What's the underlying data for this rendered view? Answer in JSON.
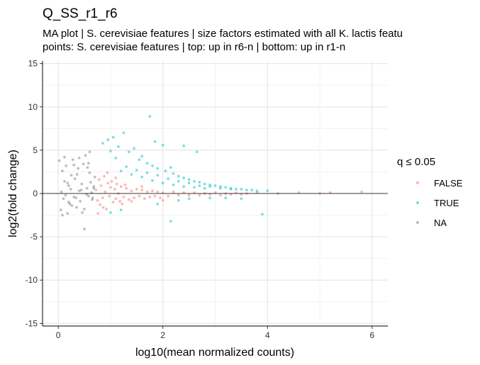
{
  "chart_data": {
    "type": "scatter",
    "title": "Q_SS_r1_r6",
    "subtitle_lines": [
      "MA plot | S. cerevisiae features | size factors estimated with all K. lactis featu",
      "points: S. cerevisiae features | top: up in r6-n | bottom: up in r1-n"
    ],
    "xlabel": "log10(mean normalized counts)",
    "ylabel": "log2(fold change)",
    "xlim": [
      -0.3,
      6.3
    ],
    "ylim": [
      -15.3,
      15.3
    ],
    "x_ticks": [
      0,
      2,
      4,
      6
    ],
    "x_tick_labels": [
      "0",
      "2",
      "4",
      "6"
    ],
    "y_ticks": [
      -15,
      -10,
      -5,
      0,
      5,
      10,
      15
    ],
    "y_tick_labels": [
      "-15",
      "-10",
      "-5",
      "0",
      "5",
      "10",
      "15"
    ],
    "grid": true,
    "reference_line_y": 0,
    "legend": {
      "title": "q ≤ 0.05",
      "placement": "right",
      "entries": [
        {
          "label": "FALSE",
          "color": "#F8766D"
        },
        {
          "label": "TRUE",
          "color": "#00BFC4"
        },
        {
          "label": "NA",
          "color": "#7F7F7F"
        }
      ]
    },
    "series": [
      {
        "name": "NA",
        "color": "#7F7F7F",
        "points": [
          [
            0.02,
            3.8
          ],
          [
            0.05,
            -1.9
          ],
          [
            0.08,
            2.6
          ],
          [
            0.1,
            -0.6
          ],
          [
            0.12,
            1.4
          ],
          [
            0.15,
            3.2
          ],
          [
            0.18,
            -2.3
          ],
          [
            0.2,
            0.9
          ],
          [
            0.22,
            -1.2
          ],
          [
            0.25,
            2.1
          ],
          [
            0.28,
            3.9
          ],
          [
            0.3,
            -0.4
          ],
          [
            0.32,
            1.7
          ],
          [
            0.35,
            -1.6
          ],
          [
            0.38,
            2.9
          ],
          [
            0.4,
            0.3
          ],
          [
            0.42,
            -0.9
          ],
          [
            0.45,
            1.1
          ],
          [
            0.48,
            3.4
          ],
          [
            0.5,
            -1.8
          ],
          [
            0.52,
            4.4
          ],
          [
            0.55,
            0.6
          ],
          [
            0.58,
            -0.3
          ],
          [
            0.6,
            2.4
          ],
          [
            0.62,
            1.3
          ],
          [
            0.65,
            -0.7
          ],
          [
            0.68,
            0.8
          ],
          [
            0.7,
            1.9
          ],
          [
            0.06,
            0.2
          ],
          [
            0.14,
            -0.2
          ],
          [
            0.24,
            0.5
          ],
          [
            0.34,
            -0.5
          ],
          [
            0.44,
            0.4
          ],
          [
            0.54,
            -0.1
          ],
          [
            0.64,
            0.1
          ],
          [
            0.18,
            1.2
          ],
          [
            0.36,
            2.2
          ],
          [
            0.56,
            3.0
          ],
          [
            0.26,
            -1.4
          ],
          [
            0.46,
            -2.2
          ],
          [
            0.5,
            -4.1
          ],
          [
            0.66,
            -0.5
          ],
          [
            0.12,
            4.2
          ],
          [
            0.4,
            4.1
          ],
          [
            0.58,
            3.5
          ],
          [
            0.3,
            3.3
          ],
          [
            0.6,
            4.8
          ],
          [
            0.08,
            -2.5
          ],
          [
            0.2,
            -1.0
          ],
          [
            0.68,
            0.6
          ]
        ]
      },
      {
        "name": "FALSE",
        "color": "#F8766D",
        "points": [
          [
            0.72,
            0.4
          ],
          [
            0.75,
            -0.8
          ],
          [
            0.78,
            1.6
          ],
          [
            0.8,
            -1.3
          ],
          [
            0.82,
            0.9
          ],
          [
            0.85,
            -0.5
          ],
          [
            0.88,
            2.0
          ],
          [
            0.9,
            0.2
          ],
          [
            0.92,
            -1.8
          ],
          [
            0.95,
            1.2
          ],
          [
            0.98,
            -0.3
          ],
          [
            1.0,
            0.7
          ],
          [
            1.02,
            1.4
          ],
          [
            1.05,
            -1.0
          ],
          [
            1.08,
            0.5
          ],
          [
            1.1,
            -0.6
          ],
          [
            1.12,
            1.1
          ],
          [
            1.15,
            0.0
          ],
          [
            1.18,
            -0.9
          ],
          [
            1.2,
            0.8
          ],
          [
            1.25,
            -0.4
          ],
          [
            1.3,
            0.6
          ],
          [
            1.35,
            -0.7
          ],
          [
            1.4,
            0.3
          ],
          [
            1.45,
            -0.5
          ],
          [
            1.5,
            0.5
          ],
          [
            1.55,
            -0.3
          ],
          [
            1.6,
            0.4
          ],
          [
            1.65,
            -0.6
          ],
          [
            1.7,
            0.2
          ],
          [
            1.75,
            -0.4
          ],
          [
            1.8,
            0.3
          ],
          [
            1.85,
            -0.3
          ],
          [
            1.9,
            0.2
          ],
          [
            1.95,
            -0.5
          ],
          [
            2.0,
            0.1
          ],
          [
            2.1,
            -0.3
          ],
          [
            2.2,
            0.2
          ],
          [
            2.3,
            -0.2
          ],
          [
            2.4,
            0.1
          ],
          [
            2.5,
            -0.2
          ],
          [
            2.6,
            0.1
          ],
          [
            2.7,
            -0.2
          ],
          [
            2.8,
            0.0
          ],
          [
            2.9,
            -0.1
          ],
          [
            3.0,
            0.1
          ],
          [
            3.1,
            -0.2
          ],
          [
            3.2,
            0.0
          ],
          [
            3.3,
            -0.1
          ],
          [
            3.4,
            0.1
          ],
          [
            3.5,
            -0.1
          ],
          [
            3.6,
            0.0
          ],
          [
            3.8,
            0.1
          ],
          [
            4.2,
            0.0
          ],
          [
            4.6,
            0.1
          ],
          [
            5.0,
            0.0
          ],
          [
            5.2,
            0.1
          ],
          [
            5.8,
            0.2
          ],
          [
            0.76,
            -2.3
          ],
          [
            0.86,
            -1.6
          ],
          [
            1.22,
            -1.2
          ],
          [
            1.4,
            -0.9
          ],
          [
            1.1,
            1.8
          ],
          [
            0.94,
            2.4
          ],
          [
            1.6,
            0.8
          ],
          [
            1.28,
            1.0
          ],
          [
            2.0,
            -0.8
          ]
        ]
      },
      {
        "name": "TRUE",
        "color": "#00BFC4",
        "points": [
          [
            0.85,
            5.8
          ],
          [
            0.95,
            6.2
          ],
          [
            1.05,
            6.5
          ],
          [
            1.15,
            5.4
          ],
          [
            1.25,
            7.0
          ],
          [
            1.35,
            4.8
          ],
          [
            1.45,
            5.2
          ],
          [
            1.55,
            3.9
          ],
          [
            1.6,
            4.3
          ],
          [
            1.7,
            3.5
          ],
          [
            1.75,
            8.9
          ],
          [
            1.8,
            3.2
          ],
          [
            1.9,
            2.9
          ],
          [
            2.0,
            5.6
          ],
          [
            2.05,
            2.6
          ],
          [
            2.15,
            3.0
          ],
          [
            2.2,
            2.3
          ],
          [
            2.3,
            2.0
          ],
          [
            2.4,
            1.8
          ],
          [
            2.5,
            1.6
          ],
          [
            2.6,
            1.4
          ],
          [
            2.7,
            1.3
          ],
          [
            2.8,
            1.1
          ],
          [
            2.9,
            1.0
          ],
          [
            3.0,
            0.9
          ],
          [
            3.1,
            0.8
          ],
          [
            3.2,
            0.7
          ],
          [
            3.3,
            0.6
          ],
          [
            3.4,
            0.5
          ],
          [
            3.5,
            0.5
          ],
          [
            3.6,
            0.4
          ],
          [
            3.7,
            0.4
          ],
          [
            3.8,
            0.3
          ],
          [
            4.0,
            0.3
          ],
          [
            1.2,
            2.6
          ],
          [
            1.4,
            2.2
          ],
          [
            1.6,
            1.9
          ],
          [
            1.8,
            1.5
          ],
          [
            2.0,
            1.2
          ],
          [
            2.2,
            1.0
          ],
          [
            2.4,
            0.8
          ],
          [
            2.6,
            0.7
          ],
          [
            2.8,
            0.6
          ],
          [
            1.3,
            3.1
          ],
          [
            1.5,
            2.7
          ],
          [
            1.7,
            2.4
          ],
          [
            1.9,
            2.1
          ],
          [
            2.1,
            1.7
          ],
          [
            2.3,
            1.4
          ],
          [
            2.5,
            1.2
          ],
          [
            2.7,
            0.9
          ],
          [
            2.9,
            0.8
          ],
          [
            3.1,
            0.6
          ],
          [
            3.3,
            0.5
          ],
          [
            1.85,
            6.0
          ],
          [
            2.4,
            5.5
          ],
          [
            1.1,
            4.1
          ],
          [
            1.2,
            -1.9
          ],
          [
            1.0,
            -2.2
          ],
          [
            1.9,
            -1.2
          ],
          [
            2.3,
            -0.8
          ],
          [
            2.5,
            -0.6
          ],
          [
            2.9,
            -0.5
          ],
          [
            3.2,
            -0.5
          ],
          [
            3.5,
            -0.6
          ],
          [
            3.9,
            -2.4
          ],
          [
            2.15,
            -3.2
          ],
          [
            1.0,
            4.9
          ],
          [
            2.65,
            4.8
          ]
        ]
      }
    ]
  }
}
